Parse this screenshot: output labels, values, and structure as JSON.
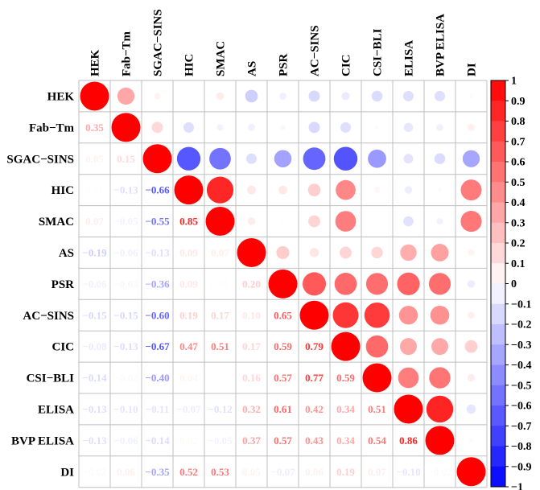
{
  "chart_data": {
    "type": "heatmap",
    "subtype": "correlogram (circles upper triangle, numbers lower triangle)",
    "variables": [
      "HEK",
      "Fab−Tm",
      "SGAC−SINS",
      "HIC",
      "SMAC",
      "AS",
      "PSR",
      "AC−SINS",
      "CIC",
      "CSI−BLI",
      "ELISA",
      "BVP ELISA",
      "DI"
    ],
    "matrix": [
      [
        1.0,
        0.35,
        0.05,
        0.01,
        0.07,
        -0.19,
        -0.06,
        -0.15,
        -0.08,
        -0.14,
        -0.13,
        -0.13,
        -0.02
      ],
      [
        0.35,
        1.0,
        0.15,
        -0.13,
        -0.05,
        -0.06,
        -0.03,
        -0.15,
        -0.13,
        -0.02,
        -0.1,
        -0.06,
        0.06
      ],
      [
        0.05,
        0.15,
        1.0,
        -0.66,
        -0.55,
        -0.13,
        -0.36,
        -0.6,
        -0.67,
        -0.4,
        -0.11,
        -0.14,
        -0.35
      ],
      [
        0.01,
        -0.13,
        -0.66,
        1.0,
        0.85,
        0.09,
        0.09,
        0.19,
        0.47,
        0.04,
        -0.07,
        0.02,
        0.52
      ],
      [
        0.07,
        -0.05,
        -0.55,
        0.85,
        1.0,
        0.07,
        0.01,
        0.17,
        0.51,
        0.0,
        -0.12,
        -0.05,
        0.53
      ],
      [
        -0.19,
        -0.06,
        -0.13,
        0.09,
        0.07,
        1.0,
        0.2,
        0.1,
        0.17,
        0.16,
        0.32,
        0.37,
        0.05
      ],
      [
        -0.06,
        -0.03,
        -0.36,
        0.09,
        0.01,
        0.2,
        1.0,
        0.65,
        0.59,
        0.57,
        0.61,
        0.57,
        -0.07
      ],
      [
        -0.15,
        -0.15,
        -0.6,
        0.19,
        0.17,
        0.1,
        0.65,
        1.0,
        0.79,
        0.77,
        0.42,
        0.43,
        0.06
      ],
      [
        -0.08,
        -0.13,
        -0.67,
        0.47,
        0.51,
        0.17,
        0.59,
        0.79,
        1.0,
        0.59,
        0.34,
        0.34,
        0.19
      ],
      [
        -0.14,
        -0.02,
        -0.4,
        0.04,
        0.0,
        0.16,
        0.57,
        0.77,
        0.59,
        1.0,
        0.51,
        0.54,
        0.07
      ],
      [
        -0.13,
        -0.1,
        -0.11,
        -0.07,
        -0.12,
        0.32,
        0.61,
        0.42,
        0.34,
        0.51,
        1.0,
        0.86,
        -0.1
      ],
      [
        -0.13,
        -0.06,
        -0.14,
        0.02,
        -0.05,
        0.37,
        0.57,
        0.43,
        0.34,
        0.54,
        0.86,
        1.0,
        -0.02
      ],
      [
        -0.02,
        0.06,
        -0.35,
        0.52,
        0.53,
        0.05,
        -0.07,
        0.06,
        0.19,
        0.07,
        -0.1,
        -0.02,
        1.0
      ]
    ],
    "labels": [
      [
        "",
        "",
        "",
        "",
        "",
        "",
        "",
        "",
        "",
        "",
        "",
        "",
        ""
      ],
      [
        "0.35",
        "",
        "",
        "",
        "",
        "",
        "",
        "",
        "",
        "",
        "",
        "",
        ""
      ],
      [
        "0.05",
        "0.15",
        "",
        "",
        "",
        "",
        "",
        "",
        "",
        "",
        "",
        "",
        ""
      ],
      [
        "0.01",
        "−0.13",
        "−0.66",
        "",
        "",
        "",
        "",
        "",
        "",
        "",
        "",
        "",
        ""
      ],
      [
        "0.07",
        "−0.05",
        "−0.55",
        "0.85",
        "",
        "",
        "",
        "",
        "",
        "",
        "",
        "",
        ""
      ],
      [
        "−0.19",
        "−0.06",
        "−0.13",
        "0.09",
        "0.07",
        "",
        "",
        "",
        "",
        "",
        "",
        "",
        ""
      ],
      [
        "−0.06",
        "−0.03",
        "−0.36",
        "0.09",
        "0.01",
        "0.20",
        "",
        "",
        "",
        "",
        "",
        "",
        ""
      ],
      [
        "−0.15",
        "−0.15",
        "−0.60",
        "0.19",
        "0.17",
        "0.10",
        "0.65",
        "",
        "",
        "",
        "",
        "",
        ""
      ],
      [
        "−0.08",
        "−0.13",
        "−0.67",
        "0.47",
        "0.51",
        "0.17",
        "0.59",
        "0.79",
        "",
        "",
        "",
        "",
        ""
      ],
      [
        "−0.14",
        "−0.02",
        "−0.40",
        "0.04",
        "0.00",
        "0.16",
        "0.57",
        "0.77",
        "0.59",
        "",
        "",
        "",
        ""
      ],
      [
        "−0.13",
        "−0.10",
        "−0.11",
        "−0.07",
        "−0.12",
        "0.32",
        "0.61",
        "0.42",
        "0.34",
        "0.51",
        "",
        "",
        ""
      ],
      [
        "−0.13",
        "−0.06",
        "−0.14",
        "0.02",
        "−0.05",
        "0.37",
        "0.57",
        "0.43",
        "0.34",
        "0.54",
        "0.86",
        "",
        ""
      ],
      [
        "−0.02",
        "0.06",
        "−0.35",
        "0.52",
        "0.53",
        "0.05",
        "−0.07",
        "0.06",
        "0.19",
        "0.07",
        "−0.10",
        "−0.02",
        ""
      ]
    ],
    "colorbar": {
      "range": [
        -1,
        1
      ],
      "ticks": [
        "1",
        "0.9",
        "0.8",
        "0.7",
        "0.6",
        "0.5",
        "0.4",
        "0.3",
        "0.2",
        "0.1",
        "0",
        "−0.1",
        "−0.2",
        "−0.3",
        "−0.4",
        "−0.5",
        "−0.6",
        "−0.7",
        "−0.8",
        "−0.9",
        "−1"
      ],
      "tick_values": [
        1,
        0.9,
        0.8,
        0.7,
        0.6,
        0.5,
        0.4,
        0.3,
        0.2,
        0.1,
        0,
        -0.1,
        -0.2,
        -0.3,
        -0.4,
        -0.5,
        -0.6,
        -0.7,
        -0.8,
        -0.9,
        -1
      ]
    },
    "colors": {
      "negative": "#0000ff",
      "neutral": "#ffffff",
      "positive": "#ff0000",
      "grid": "#bfbfbf"
    }
  }
}
